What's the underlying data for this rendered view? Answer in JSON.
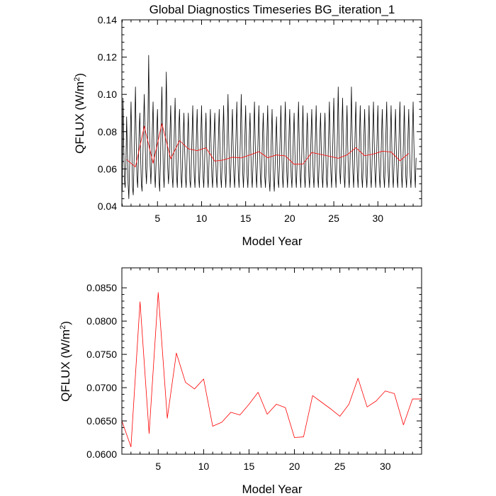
{
  "chart_data": [
    {
      "type": "line",
      "title": "Global Diagnostics Timeseries BG_iteration_1",
      "xlabel": "Model Year",
      "ylabel": "QFLUX (W/m",
      "ylabel_sup": "2",
      "ylabel_close": ")",
      "xlim": [
        0.96,
        34.96
      ],
      "ylim": [
        0.04,
        0.14
      ],
      "xticks": [
        5,
        10,
        15,
        20,
        25,
        30
      ],
      "xtick_labels": [
        "5",
        "10",
        "15",
        "20",
        "25",
        "30"
      ],
      "yticks": [
        0.04,
        0.06,
        0.08,
        0.1,
        0.12,
        0.14
      ],
      "ytick_labels": [
        "0.04",
        "0.06",
        "0.08",
        "0.10",
        "0.12",
        "0.14"
      ],
      "grid": false,
      "series": [
        {
          "color": "#000000",
          "x_start": 1.0,
          "x_step": 0.0833333,
          "values": [
            0.048,
            0.098,
            0.074,
            0.054,
            0.05,
            0.062,
            0.088,
            0.07,
            0.052,
            0.044,
            0.06,
            0.078,
            0.096,
            0.072,
            0.05,
            0.046,
            0.062,
            0.082,
            0.104,
            0.076,
            0.056,
            0.05,
            0.064,
            0.08,
            0.09,
            0.068,
            0.052,
            0.048,
            0.064,
            0.084,
            0.1,
            0.08,
            0.06,
            0.052,
            0.066,
            0.086,
            0.121,
            0.086,
            0.062,
            0.052,
            0.064,
            0.082,
            0.096,
            0.074,
            0.058,
            0.05,
            0.062,
            0.08,
            0.092,
            0.07,
            0.054,
            0.048,
            0.064,
            0.086,
            0.104,
            0.078,
            0.058,
            0.05,
            0.064,
            0.084,
            0.112,
            0.082,
            0.06,
            0.052,
            0.062,
            0.08,
            0.094,
            0.072,
            0.056,
            0.05,
            0.064,
            0.082,
            0.098,
            0.074,
            0.056,
            0.05,
            0.064,
            0.082,
            0.092,
            0.072,
            0.056,
            0.05,
            0.062,
            0.078,
            0.09,
            0.07,
            0.056,
            0.05,
            0.062,
            0.078,
            0.09,
            0.07,
            0.054,
            0.05,
            0.062,
            0.078,
            0.094,
            0.072,
            0.056,
            0.05,
            0.062,
            0.078,
            0.092,
            0.072,
            0.056,
            0.05,
            0.062,
            0.078,
            0.094,
            0.072,
            0.056,
            0.05,
            0.062,
            0.078,
            0.09,
            0.07,
            0.056,
            0.05,
            0.062,
            0.078,
            0.092,
            0.072,
            0.056,
            0.05,
            0.062,
            0.078,
            0.09,
            0.07,
            0.056,
            0.05,
            0.062,
            0.078,
            0.092,
            0.072,
            0.056,
            0.05,
            0.062,
            0.078,
            0.094,
            0.074,
            0.058,
            0.05,
            0.062,
            0.08,
            0.1,
            0.076,
            0.058,
            0.05,
            0.062,
            0.078,
            0.092,
            0.072,
            0.056,
            0.05,
            0.062,
            0.08,
            0.096,
            0.074,
            0.058,
            0.05,
            0.062,
            0.08,
            0.1,
            0.076,
            0.058,
            0.05,
            0.062,
            0.078,
            0.094,
            0.072,
            0.056,
            0.05,
            0.062,
            0.078,
            0.09,
            0.07,
            0.056,
            0.05,
            0.062,
            0.08,
            0.096,
            0.074,
            0.058,
            0.05,
            0.062,
            0.078,
            0.094,
            0.072,
            0.056,
            0.05,
            0.062,
            0.078,
            0.09,
            0.07,
            0.056,
            0.05,
            0.062,
            0.078,
            0.094,
            0.072,
            0.054,
            0.048,
            0.06,
            0.078,
            0.092,
            0.07,
            0.054,
            0.048,
            0.06,
            0.076,
            0.088,
            0.068,
            0.054,
            0.05,
            0.062,
            0.078,
            0.094,
            0.072,
            0.056,
            0.05,
            0.062,
            0.08,
            0.096,
            0.074,
            0.058,
            0.05,
            0.062,
            0.078,
            0.092,
            0.072,
            0.056,
            0.05,
            0.062,
            0.078,
            0.09,
            0.07,
            0.056,
            0.05,
            0.062,
            0.08,
            0.096,
            0.074,
            0.058,
            0.05,
            0.062,
            0.078,
            0.094,
            0.072,
            0.056,
            0.05,
            0.062,
            0.078,
            0.09,
            0.07,
            0.056,
            0.05,
            0.062,
            0.078,
            0.092,
            0.072,
            0.056,
            0.05,
            0.062,
            0.078,
            0.094,
            0.072,
            0.056,
            0.05,
            0.062,
            0.078,
            0.09,
            0.07,
            0.056,
            0.05,
            0.062,
            0.078,
            0.09,
            0.07,
            0.054,
            0.05,
            0.062,
            0.08,
            0.096,
            0.074,
            0.058,
            0.05,
            0.062,
            0.08,
            0.098,
            0.076,
            0.058,
            0.05,
            0.062,
            0.08,
            0.104,
            0.078,
            0.06,
            0.052,
            0.064,
            0.082,
            0.098,
            0.074,
            0.056,
            0.05,
            0.062,
            0.078,
            0.094,
            0.072,
            0.056,
            0.05,
            0.062,
            0.08,
            0.104,
            0.078,
            0.058,
            0.05,
            0.062,
            0.08,
            0.096,
            0.074,
            0.058,
            0.05,
            0.062,
            0.078,
            0.094,
            0.072,
            0.056,
            0.05,
            0.062,
            0.078,
            0.092,
            0.072,
            0.056,
            0.05,
            0.062,
            0.078,
            0.094,
            0.072,
            0.056,
            0.05,
            0.062,
            0.08,
            0.096,
            0.074,
            0.058,
            0.05,
            0.062,
            0.078,
            0.094,
            0.072,
            0.056,
            0.05,
            0.062,
            0.078,
            0.092,
            0.072,
            0.056,
            0.05,
            0.062,
            0.08,
            0.096,
            0.074,
            0.058,
            0.05,
            0.062,
            0.078,
            0.094,
            0.072,
            0.056,
            0.05,
            0.062,
            0.078,
            0.092,
            0.072,
            0.056,
            0.05,
            0.062,
            0.08,
            0.096,
            0.074,
            0.058,
            0.05,
            0.062,
            0.078,
            0.094,
            0.072,
            0.056,
            0.05,
            0.062,
            0.078,
            0.092,
            0.072,
            0.056,
            0.05,
            0.062,
            0.08,
            0.096,
            0.074,
            0.058,
            0.05,
            0.066
          ]
        },
        {
          "color": "#ff0000",
          "x": [
            1.5,
            2.5,
            3.5,
            4.5,
            5.5,
            6.5,
            7.5,
            8.5,
            9.5,
            10.5,
            11.5,
            12.5,
            13.5,
            14.5,
            15.5,
            16.5,
            17.5,
            18.5,
            19.5,
            20.5,
            21.5,
            22.5,
            23.5,
            24.5,
            25.5,
            26.5,
            27.5,
            28.5,
            29.5,
            30.5,
            31.5,
            32.5,
            33.5
          ],
          "values": [
            0.065,
            0.0611,
            0.0829,
            0.0631,
            0.0843,
            0.0654,
            0.0752,
            0.0708,
            0.0698,
            0.0713,
            0.0642,
            0.0648,
            0.0663,
            0.0659,
            0.0675,
            0.0693,
            0.066,
            0.0675,
            0.067,
            0.0625,
            0.0626,
            0.0688,
            0.0678,
            0.0668,
            0.0657,
            0.0675,
            0.0714,
            0.0671,
            0.068,
            0.0695,
            0.0691,
            0.0644,
            0.0683
          ]
        }
      ]
    },
    {
      "type": "line",
      "xlabel": "Model Year",
      "ylabel": "QFLUX (W/m",
      "ylabel_sup": "2",
      "ylabel_close": ")",
      "xlim": [
        1.0,
        34.0
      ],
      "ylim": [
        0.06,
        0.088
      ],
      "xticks": [
        5,
        10,
        15,
        20,
        25,
        30
      ],
      "xtick_labels": [
        "5",
        "10",
        "15",
        "20",
        "25",
        "30"
      ],
      "yticks": [
        0.06,
        0.065,
        0.07,
        0.075,
        0.08,
        0.085
      ],
      "ytick_labels": [
        "0.0600",
        "0.0650",
        "0.0700",
        "0.0750",
        "0.0800",
        "0.0850"
      ],
      "grid": false,
      "series": [
        {
          "color": "#ff0000",
          "x": [
            1.0,
            2.0,
            3.0,
            4.0,
            5.0,
            6.0,
            7.0,
            8.0,
            9.0,
            10.0,
            11.0,
            12.0,
            13.0,
            14.0,
            15.0,
            16.0,
            17.0,
            18.0,
            19.0,
            20.0,
            21.0,
            22.0,
            23.0,
            24.0,
            25.0,
            26.0,
            27.0,
            28.0,
            29.0,
            30.0,
            31.0,
            32.0,
            33.0,
            34.0
          ],
          "values": [
            0.065,
            0.0611,
            0.0829,
            0.0631,
            0.0843,
            0.0654,
            0.0752,
            0.0708,
            0.0698,
            0.0713,
            0.0642,
            0.0648,
            0.0663,
            0.0659,
            0.0675,
            0.0693,
            0.066,
            0.0675,
            0.067,
            0.0625,
            0.0626,
            0.0688,
            0.0678,
            0.0668,
            0.0657,
            0.0675,
            0.0714,
            0.0671,
            0.068,
            0.0695,
            0.0691,
            0.0644,
            0.0683,
            0.0683
          ]
        }
      ]
    }
  ]
}
